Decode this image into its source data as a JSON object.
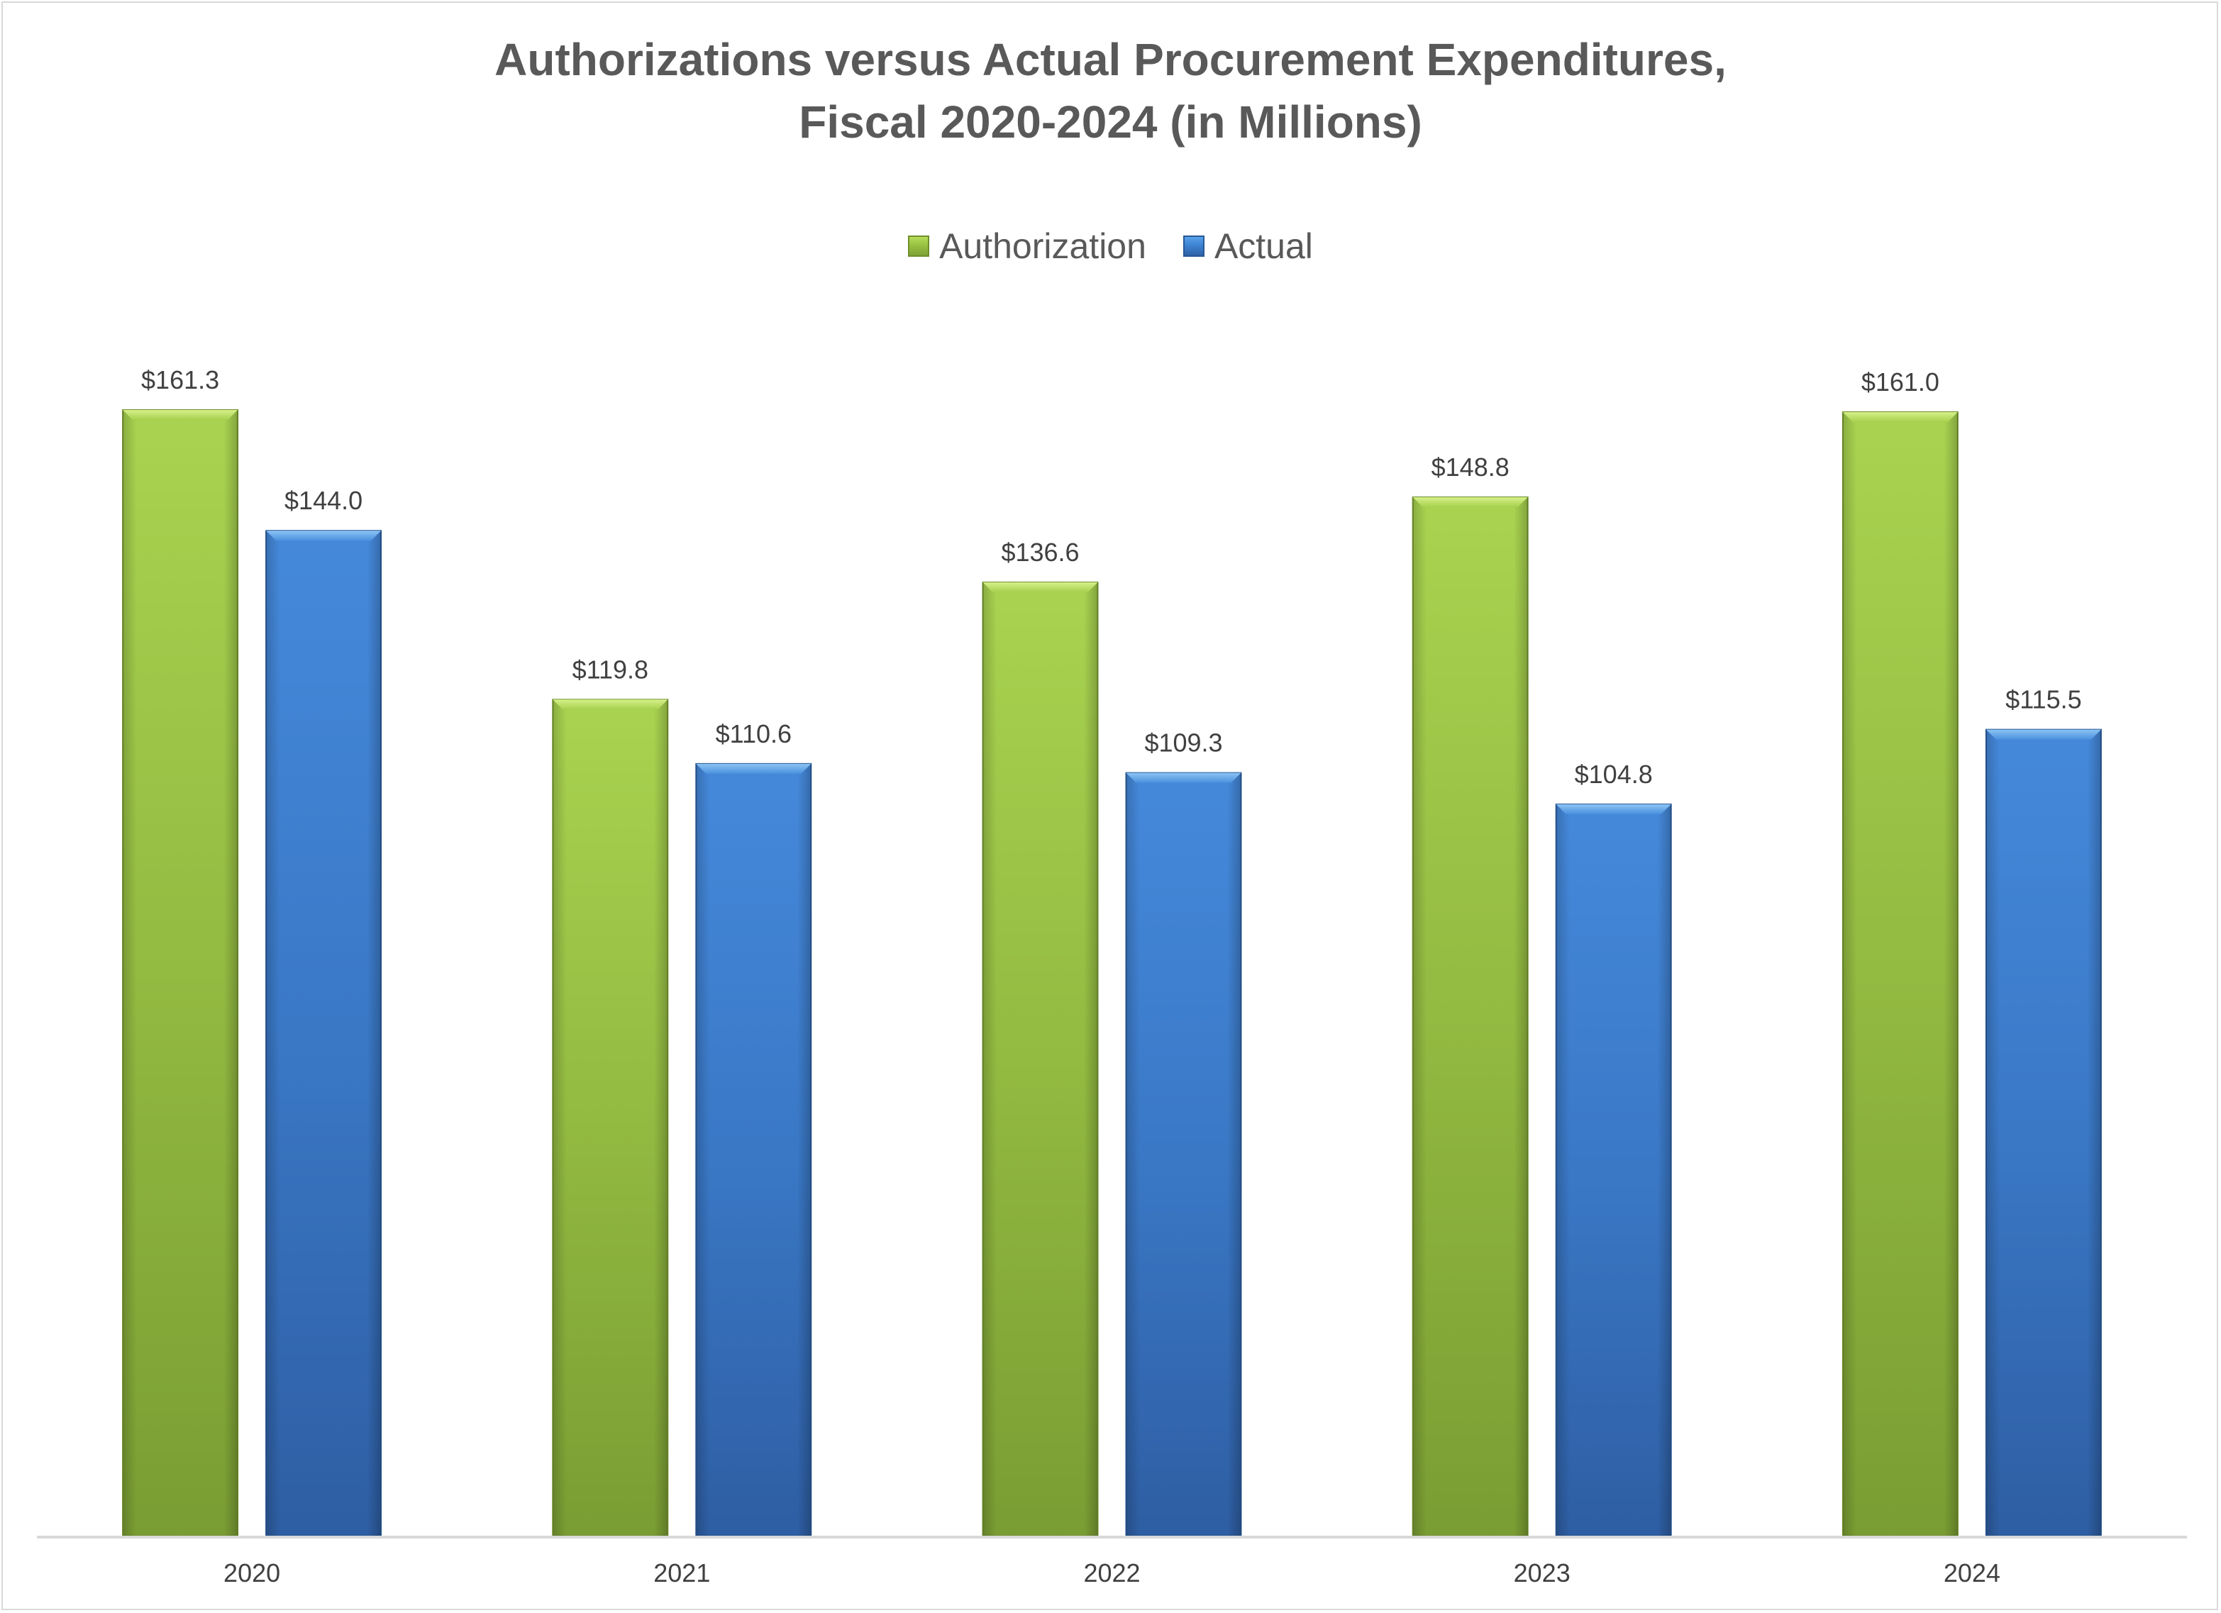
{
  "chart_data": {
    "type": "bar",
    "title": "Authorizations versus Actual Procurement Expenditures,",
    "subtitle": "Fiscal 2020-2024 (in Millions)",
    "categories": [
      "2020",
      "2021",
      "2022",
      "2023",
      "2024"
    ],
    "series": [
      {
        "name": "Authorization",
        "values": [
          161.3,
          119.8,
          136.6,
          148.8,
          161.0
        ],
        "labels": [
          "$161.3",
          "$119.8",
          "$136.6",
          "$148.8",
          "$161.0"
        ],
        "color": "#9cc443"
      },
      {
        "name": "Actual",
        "values": [
          144.0,
          110.6,
          109.3,
          104.8,
          115.5
        ],
        "labels": [
          "$144.0",
          "$110.6",
          "$109.3",
          "$104.8",
          "$115.5"
        ],
        "color": "#3f86d6"
      }
    ],
    "ylim": [
      0,
      161.3
    ],
    "grid": false,
    "legend": "top-center",
    "xlabel": "",
    "ylabel": ""
  }
}
